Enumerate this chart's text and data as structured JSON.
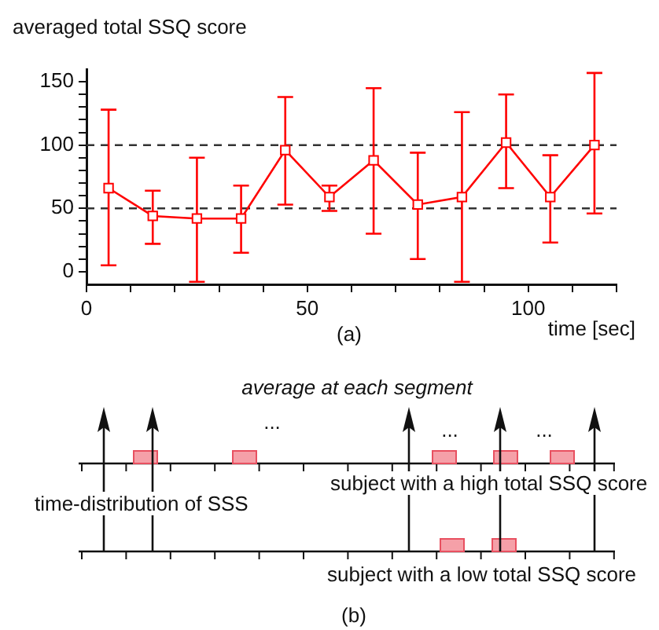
{
  "chart_data": {
    "type": "line",
    "ylabel": "averaged total SSQ score",
    "xlabel": "time [sec]",
    "x": [
      5,
      15,
      25,
      35,
      45,
      55,
      65,
      75,
      85,
      95,
      105,
      115
    ],
    "values": [
      66,
      44,
      42,
      42,
      96,
      59,
      88,
      53,
      59,
      102,
      59,
      100
    ],
    "errors": [
      [
        5,
        128
      ],
      [
        22,
        64
      ],
      [
        -8,
        90
      ],
      [
        15,
        68
      ],
      [
        53,
        138
      ],
      [
        48,
        68
      ],
      [
        30,
        145
      ],
      [
        10,
        94
      ],
      [
        -8,
        126
      ],
      [
        66,
        140
      ],
      [
        23,
        92
      ],
      [
        46,
        157
      ]
    ],
    "color": "#ff0000",
    "marker": "square",
    "xlim": [
      0,
      120
    ],
    "xticks": [
      0,
      {
        "value": 10,
        "label": null
      },
      {
        "value": 20,
        "label": null
      },
      {
        "value": 30,
        "label": null
      },
      {
        "value": 40,
        "label": null
      },
      50,
      {
        "value": 60,
        "label": null
      },
      {
        "value": 70,
        "label": null
      },
      {
        "value": 80,
        "label": null
      },
      {
        "value": 90,
        "label": null
      },
      100,
      {
        "value": 110,
        "label": null
      },
      {
        "value": 120,
        "label": null
      }
    ],
    "ylim": [
      -10,
      160
    ],
    "yticks": [
      0,
      {
        "value": 10,
        "label": null
      },
      {
        "value": 20,
        "label": null
      },
      {
        "value": 30,
        "label": null
      },
      {
        "value": 40,
        "label": null
      },
      50,
      {
        "value": 60,
        "label": null
      },
      {
        "value": 70,
        "label": null
      },
      {
        "value": 80,
        "label": null
      },
      {
        "value": 90,
        "label": null
      },
      100,
      {
        "value": 110,
        "label": null
      },
      {
        "value": 120,
        "label": null
      },
      {
        "value": 130,
        "label": null
      },
      {
        "value": 140,
        "label": null
      },
      150
    ],
    "ref_lines": [
      {
        "axis": "y",
        "value": 50,
        "color": "#333333",
        "line_style": "dashed"
      },
      {
        "axis": "y",
        "value": 100,
        "color": "#333333",
        "line_style": "dashed"
      }
    ],
    "grid": false,
    "legend": false,
    "annotations": [
      "(a)",
      "average at each segment",
      "...",
      "...",
      "...",
      "time-distribution of SSS",
      "subject with a high total SSQ score",
      "subject with a low total SSQ score",
      "(b)"
    ]
  }
}
